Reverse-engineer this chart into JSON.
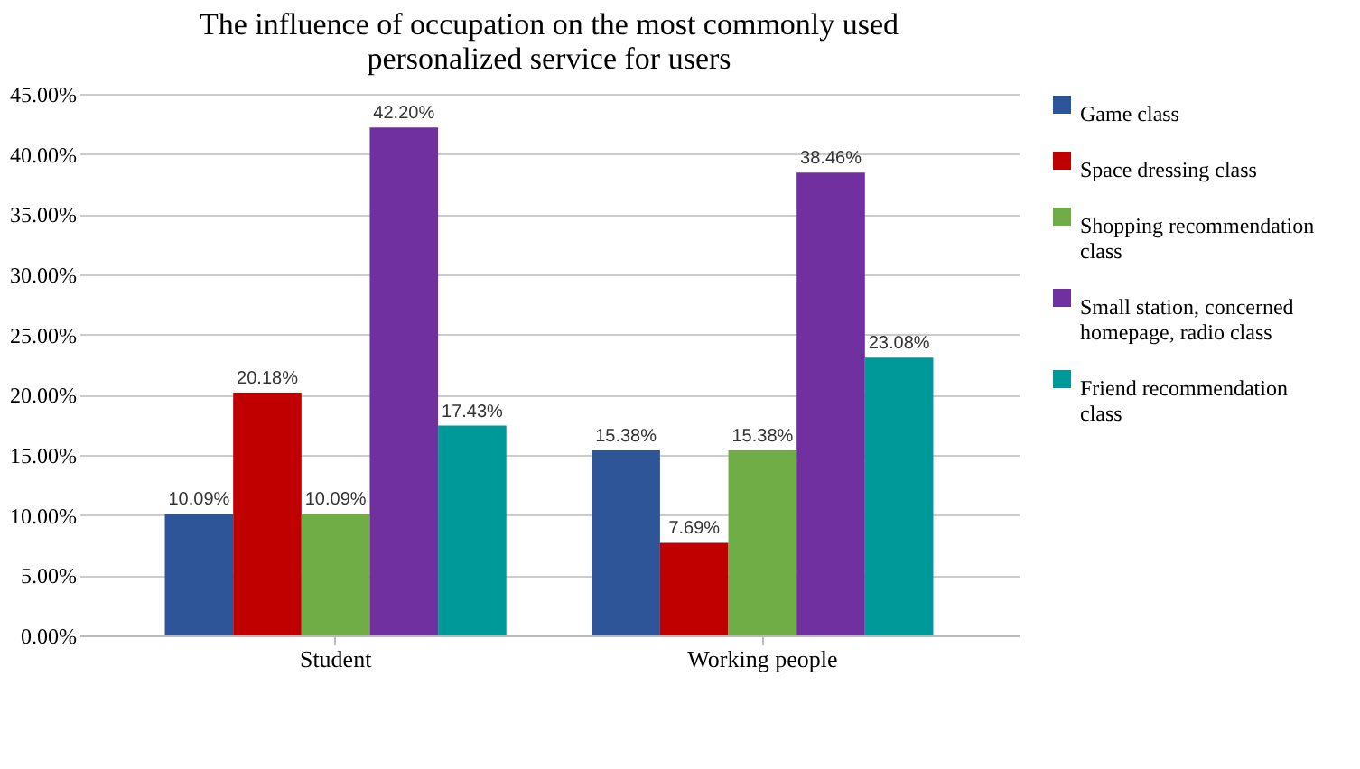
{
  "chart_data": {
    "type": "bar",
    "title": "The influence of occupation on the most commonly used personalized service for users",
    "categories": [
      "Student",
      "Working people"
    ],
    "series": [
      {
        "name": "Game class",
        "color": "#2e5597",
        "values": [
          10.09,
          15.38
        ],
        "value_labels": [
          "10.09%",
          "15.38%"
        ]
      },
      {
        "name": "Space dressing class",
        "color": "#c00000",
        "values": [
          20.18,
          7.69
        ],
        "value_labels": [
          "20.18%",
          "7.69%"
        ]
      },
      {
        "name": "Shopping recommendation class",
        "color": "#70ad47",
        "values": [
          10.09,
          15.38
        ],
        "value_labels": [
          "10.09%",
          "15.38%"
        ]
      },
      {
        "name": "Small station, concerned homepage, radio class",
        "color": "#7030a0",
        "values": [
          42.2,
          38.46
        ],
        "value_labels": [
          "42.20%",
          "38.46%"
        ]
      },
      {
        "name": "Friend recommendation class",
        "color": "#009999",
        "values": [
          17.43,
          23.08
        ],
        "value_labels": [
          "17.43%",
          "23.08%"
        ]
      }
    ],
    "ylim": [
      0,
      45
    ],
    "yticks": [
      {
        "value": 0,
        "label": "0.00%"
      },
      {
        "value": 5,
        "label": "5.00%"
      },
      {
        "value": 10,
        "label": "10.00%"
      },
      {
        "value": 15,
        "label": "15.00%"
      },
      {
        "value": 20,
        "label": "20.00%"
      },
      {
        "value": 25,
        "label": "25.00%"
      },
      {
        "value": 30,
        "label": "30.00%"
      },
      {
        "value": 35,
        "label": "35.00%"
      },
      {
        "value": 40,
        "label": "40.00%"
      },
      {
        "value": 45,
        "label": "45.00%"
      }
    ],
    "grid": "y",
    "legend": "right"
  }
}
